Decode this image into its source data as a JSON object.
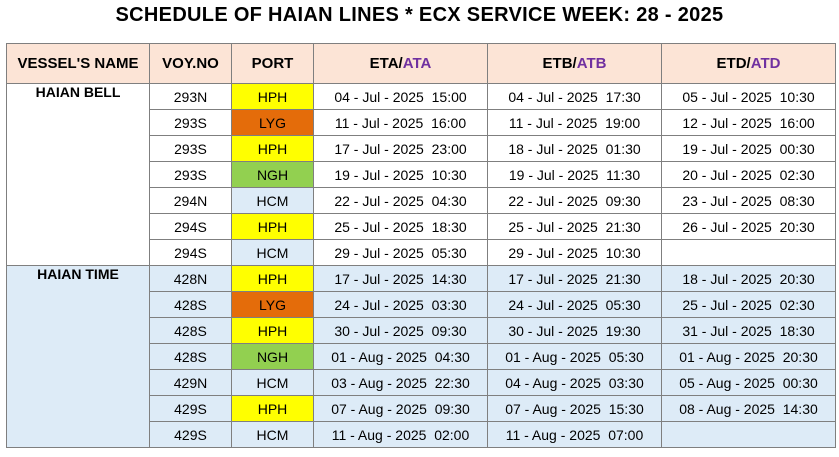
{
  "title": "SCHEDULE OF HAIAN LINES * ECX SERVICE WEEK: 28 - 2025",
  "headers": {
    "vessel": "VESSEL'S NAME",
    "voy": "VOY.NO",
    "port": "PORT",
    "eta": "ETA/",
    "ata": "ATA",
    "etb": "ETB/",
    "atb": "ATB",
    "etd": "ETD/",
    "atd": "ATD"
  },
  "colors": {
    "HPH": "#ffff00",
    "LYG": "#e46c0a",
    "NGH": "#92d050",
    "HCM": "#ddebf7",
    "header": "#fce4d6",
    "actual_text": "#7030a0"
  },
  "vessels": [
    {
      "name": "HAIAN BELL",
      "rows": [
        {
          "voy": "293N",
          "port": "HPH",
          "eta": "04 - Jul - 2025  15:00",
          "etb": "04 - Jul - 2025  17:30",
          "etd": "05 - Jul - 2025  10:30"
        },
        {
          "voy": "293S",
          "port": "LYG",
          "eta": "11 - Jul - 2025  16:00",
          "etb": "11 - Jul - 2025  19:00",
          "etd": "12 - Jul - 2025  16:00"
        },
        {
          "voy": "293S",
          "port": "HPH",
          "eta": "17 - Jul - 2025  23:00",
          "etb": "18 - Jul - 2025  01:30",
          "etd": "19 - Jul - 2025  00:30"
        },
        {
          "voy": "293S",
          "port": "NGH",
          "eta": "19 - Jul - 2025  10:30",
          "etb": "19 - Jul - 2025  11:30",
          "etd": "20 - Jul - 2025  02:30"
        },
        {
          "voy": "294N",
          "port": "HCM",
          "eta": "22 - Jul - 2025  04:30",
          "etb": "22 - Jul - 2025  09:30",
          "etd": "23 - Jul - 2025  08:30"
        },
        {
          "voy": "294S",
          "port": "HPH",
          "eta": "25 - Jul - 2025  18:30",
          "etb": "25 - Jul - 2025  21:30",
          "etd": "26 - Jul - 2025  20:30"
        },
        {
          "voy": "294S",
          "port": "HCM",
          "eta": "29 - Jul - 2025  05:30",
          "etb": "29 - Jul - 2025  10:30",
          "etd": ""
        }
      ]
    },
    {
      "name": "HAIAN TIME",
      "rows": [
        {
          "voy": "428N",
          "port": "HPH",
          "eta": "17 - Jul - 2025  14:30",
          "etb": "17 - Jul - 2025  21:30",
          "etd": "18 - Jul - 2025  20:30"
        },
        {
          "voy": "428S",
          "port": "LYG",
          "eta": "24 - Jul - 2025  03:30",
          "etb": "24 - Jul - 2025  05:30",
          "etd": "25 - Jul - 2025  02:30"
        },
        {
          "voy": "428S",
          "port": "HPH",
          "eta": "30 - Jul - 2025  09:30",
          "etb": "30 - Jul - 2025  19:30",
          "etd": "31 - Jul - 2025  18:30"
        },
        {
          "voy": "428S",
          "port": "NGH",
          "eta": "01 - Aug - 2025  04:30",
          "etb": "01 - Aug - 2025  05:30",
          "etd": "01 - Aug - 2025  20:30"
        },
        {
          "voy": "429N",
          "port": "HCM",
          "eta": "03 - Aug - 2025  22:30",
          "etb": "04 - Aug - 2025  03:30",
          "etd": "05 - Aug - 2025  00:30"
        },
        {
          "voy": "429S",
          "port": "HPH",
          "eta": "07 - Aug - 2025  09:30",
          "etb": "07 - Aug - 2025  15:30",
          "etd": "08 - Aug - 2025  14:30"
        },
        {
          "voy": "429S",
          "port": "HCM",
          "eta": "11 - Aug - 2025  02:00",
          "etb": "11 - Aug - 2025  07:00",
          "etd": ""
        }
      ]
    }
  ]
}
